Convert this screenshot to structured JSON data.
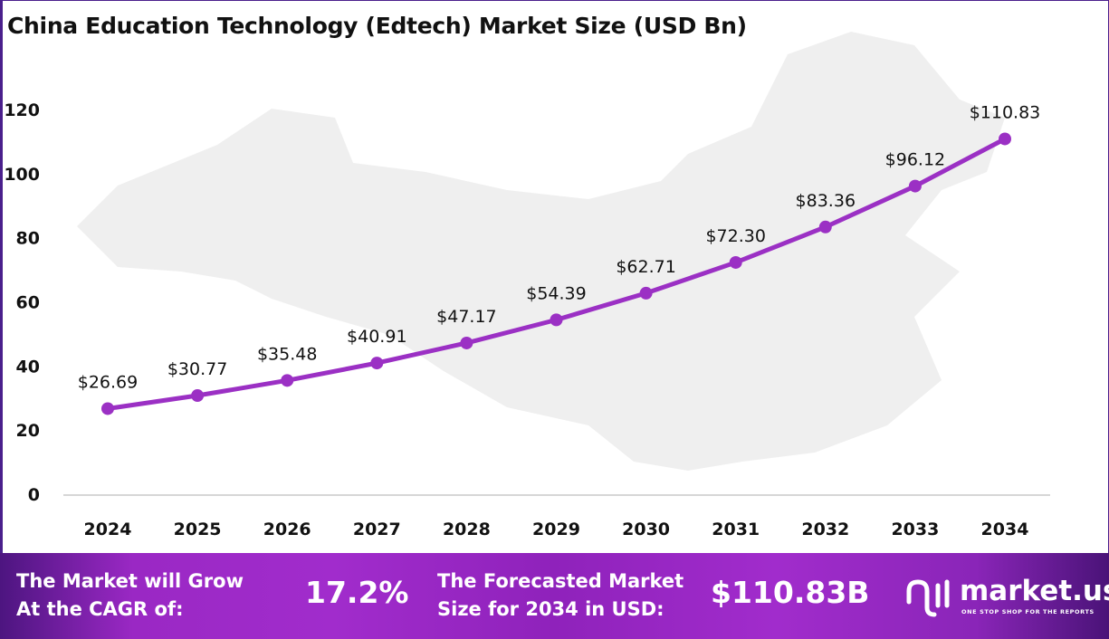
{
  "title": "China Education Technology (Edtech) Market Size (USD Bn)",
  "chart_data": {
    "type": "line",
    "title": "China Education Technology (Edtech) Market Size (USD Bn)",
    "categories": [
      "2024",
      "2025",
      "2026",
      "2027",
      "2028",
      "2029",
      "2030",
      "2031",
      "2032",
      "2033",
      "2034"
    ],
    "values": [
      26.69,
      30.77,
      35.48,
      40.91,
      47.17,
      54.39,
      62.71,
      72.3,
      83.36,
      96.12,
      110.83
    ],
    "data_labels": [
      "$26.69",
      "$30.77",
      "$35.48",
      "$40.91",
      "$47.17",
      "$54.39",
      "$62.71",
      "$72.30",
      "$83.36",
      "$96.12",
      "$110.83"
    ],
    "yticks": [
      "0",
      "20",
      "40",
      "60",
      "80",
      "100",
      "120"
    ],
    "ylim": [
      0,
      120
    ],
    "grid": false,
    "line_color": "#9b30c4",
    "background": "China map silhouette (light grey)"
  },
  "footer": {
    "cagr_label_1": "The Market will Grow",
    "cagr_label_2": "At the CAGR of:",
    "cagr_value": "17.2%",
    "forecast_label_1": "The Forecasted Market",
    "forecast_label_2": "Size for 2034 in USD:",
    "forecast_value": "$110.83B",
    "logo_name": "market.us",
    "logo_tagline": "ONE STOP SHOP FOR THE REPORTS"
  }
}
